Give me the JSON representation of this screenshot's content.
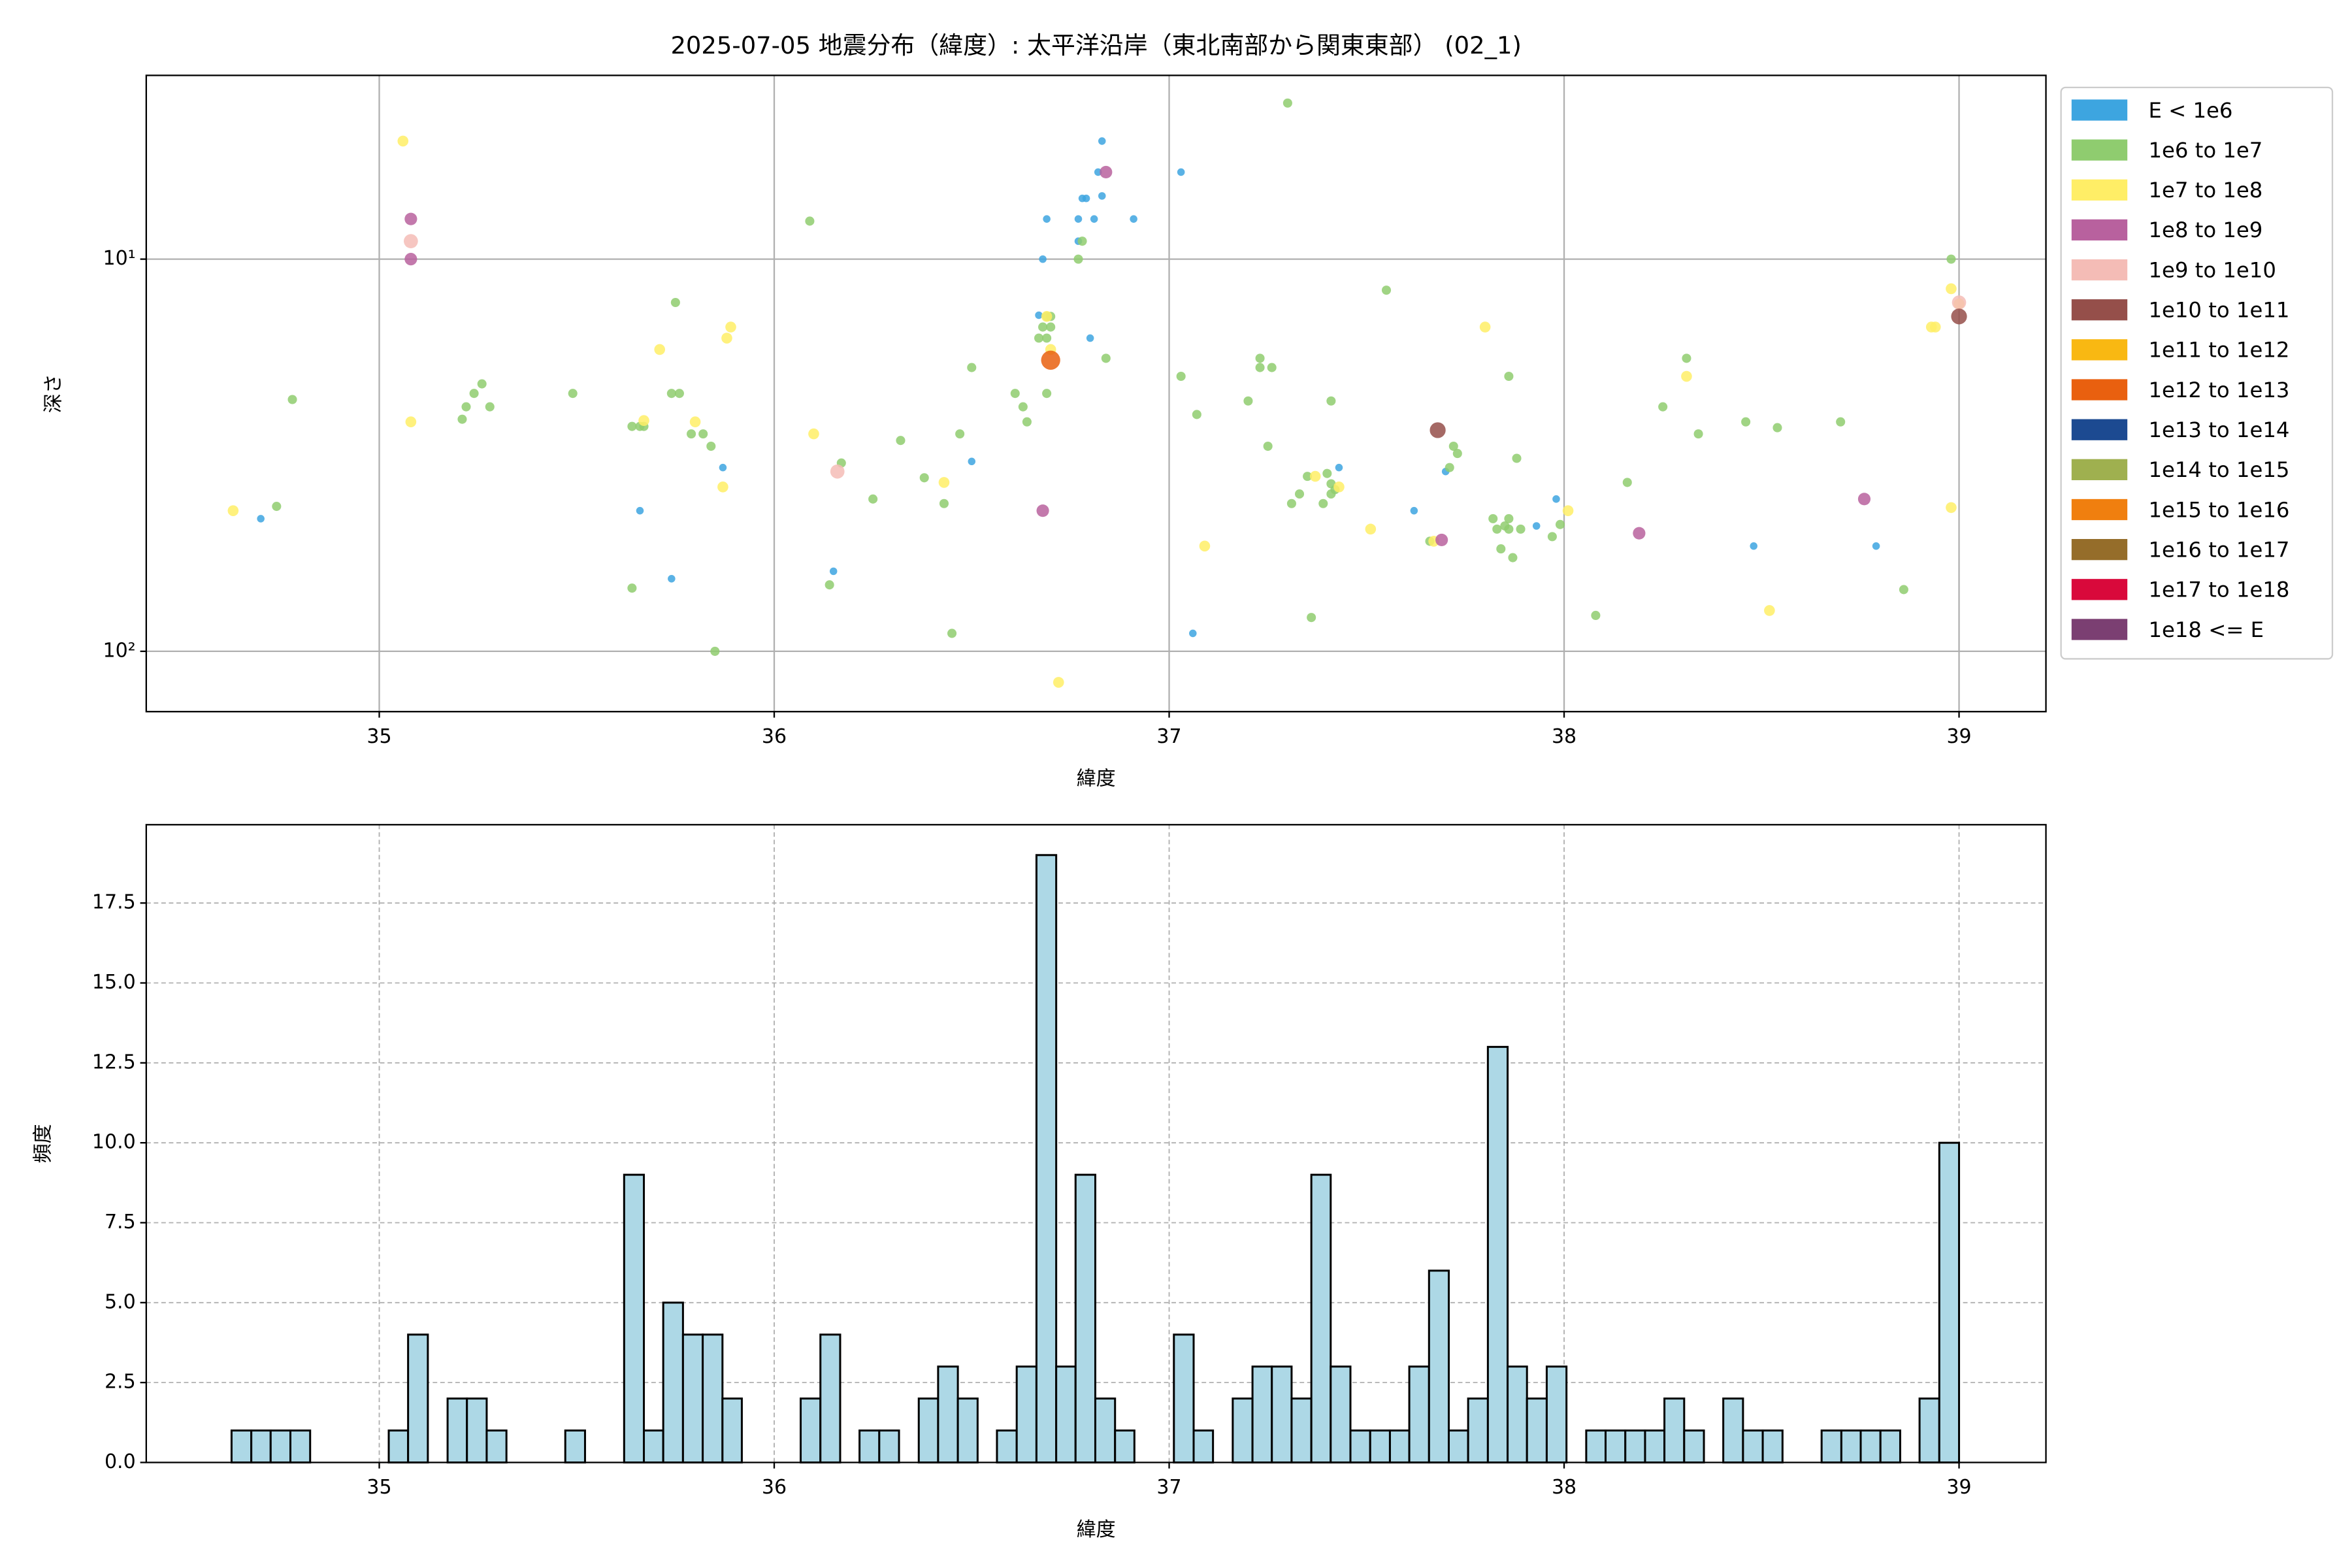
{
  "chart_data": [
    {
      "type": "scatter",
      "title": "2025-07-05 地震分布（緯度）: 太平洋沿岸（東北南部から関東東部） (02_1)",
      "xlabel": "緯度",
      "ylabel": "深さ",
      "xlim": [
        34.41,
        39.22
      ],
      "xticks": [
        35,
        36,
        37,
        38,
        39
      ],
      "ylim": [
        3.4,
        142.5
      ],
      "log_y": true,
      "invert_y": true,
      "yticks": [
        {
          "value": 10,
          "label": "10¹"
        },
        {
          "value": 100,
          "label": "10²"
        }
      ],
      "grid": true,
      "legend": "right",
      "series": [
        {
          "name": "E < 1e6",
          "color": "#3da5e0",
          "x": [
            34.7,
            35.66,
            35.74,
            35.87,
            36.15,
            36.5,
            36.68,
            36.69,
            36.67,
            36.77,
            36.78,
            36.79,
            36.77,
            36.81,
            36.82,
            36.83,
            36.83,
            36.91,
            36.8,
            37.03,
            37.06,
            37.43,
            37.62,
            37.7,
            37.93,
            37.98,
            38.48,
            38.79
          ],
          "y": [
            45.9,
            43.8,
            65.3,
            34.0,
            62.5,
            32.8,
            10.0,
            7.9,
            13.9,
            7.9,
            7.0,
            7.0,
            9.0,
            7.9,
            6.0,
            5.0,
            6.9,
            7.9,
            15.9,
            6.0,
            90,
            34.0,
            43.8,
            34.8,
            47.9,
            40.9,
            53.9,
            53.9
          ]
        },
        {
          "name": "1e6 to 1e7",
          "color": "#8fcc6f",
          "x": [
            34.78,
            34.74,
            35.21,
            35.22,
            35.24,
            35.26,
            35.28,
            35.49,
            35.64,
            35.64,
            35.66,
            35.67,
            35.75,
            35.74,
            35.76,
            35.79,
            35.82,
            35.84,
            35.85,
            36.09,
            36.14,
            36.17,
            36.25,
            36.32,
            36.38,
            36.43,
            36.45,
            36.47,
            36.5,
            36.61,
            36.63,
            36.64,
            36.69,
            36.68,
            36.69,
            36.7,
            36.69,
            36.67,
            36.7,
            36.77,
            36.78,
            36.84,
            37.03,
            37.07,
            37.2,
            37.23,
            37.23,
            37.26,
            37.25,
            37.31,
            37.33,
            37.35,
            37.36,
            37.39,
            37.4,
            37.41,
            37.42,
            37.41,
            37.41,
            37.55,
            37.3,
            37.66,
            37.71,
            37.72,
            37.73,
            37.82,
            37.83,
            37.85,
            37.86,
            37.86,
            37.84,
            37.87,
            37.88,
            37.86,
            37.89,
            37.97,
            37.99,
            38.08,
            38.16,
            38.25,
            38.31,
            38.34,
            38.46,
            38.54,
            38.7,
            38.86,
            38.98
          ],
          "y": [
            22.8,
            42.7,
            25.6,
            23.8,
            22.0,
            20.8,
            23.8,
            22.0,
            69,
            26.7,
            26.7,
            26.7,
            12.9,
            22.0,
            22.0,
            27.9,
            27.9,
            30.0,
            100,
            8.0,
            67.7,
            33.1,
            40.9,
            29.0,
            36.1,
            42.0,
            90,
            27.9,
            18.9,
            22.0,
            23.8,
            26.0,
            22.0,
            14.9,
            15.9,
            14.9,
            14.0,
            15.9,
            14.0,
            10.0,
            9.0,
            17.9,
            19.9,
            24.9,
            23.0,
            17.9,
            18.9,
            18.9,
            30.0,
            42.0,
            39.7,
            35.8,
            82,
            42.0,
            35.2,
            37.4,
            38.7,
            39.7,
            23.0,
            12.0,
            4.0,
            52.4,
            34.0,
            30.0,
            31.3,
            45.9,
            48.8,
            47.9,
            45.9,
            48.8,
            54.8,
            57.7,
            32.2,
            19.9,
            48.8,
            51.0,
            47.5,
            81,
            37.1,
            23.8,
            17.9,
            27.9,
            26.0,
            26.9,
            26.0,
            69.6,
            10.0
          ]
        },
        {
          "name": "1e7 to 1e8",
          "color": "#ffee66",
          "x": [
            34.63,
            35.06,
            35.08,
            35.71,
            35.67,
            35.8,
            35.89,
            35.88,
            35.87,
            36.1,
            36.43,
            36.69,
            36.7,
            36.72,
            37.09,
            37.37,
            37.43,
            37.51,
            37.67,
            37.8,
            38.01,
            38.31,
            38.52,
            38.93,
            38.94,
            38.98,
            38.98,
            39.0
          ],
          "y": [
            43.8,
            5.0,
            26.0,
            17.0,
            25.8,
            26.0,
            14.9,
            15.9,
            38.1,
            27.9,
            37.1,
            14.0,
            17.0,
            120,
            53.9,
            35.8,
            38.1,
            48.8,
            52.4,
            14.9,
            43.8,
            19.9,
            78.7,
            14.9,
            14.9,
            11.9,
            43.0,
            13.0
          ]
        },
        {
          "name": "1e8 to 1e9",
          "color": "#b8619e",
          "x": [
            35.08,
            35.08,
            36.84,
            36.68,
            37.69,
            38.19,
            38.76
          ],
          "y": [
            7.9,
            10.0,
            6.0,
            43.8,
            52.0,
            50.0,
            40.9
          ]
        },
        {
          "name": "1e9 to 1e10",
          "color": "#f4bcb6",
          "x": [
            35.08,
            36.16,
            39.0
          ],
          "y": [
            9.0,
            34.8,
            12.9
          ]
        },
        {
          "name": "1e10 to 1e11",
          "color": "#954f4a",
          "x": [
            37.68,
            39.0
          ],
          "y": [
            27.3,
            14.0
          ]
        },
        {
          "name": "1e11 to 1e12",
          "color": "#f9b812",
          "x": [],
          "y": []
        },
        {
          "name": "1e12 to 1e13",
          "color": "#e9600f",
          "x": [
            36.7
          ],
          "y": [
            18.1
          ]
        },
        {
          "name": "1e13 to 1e14",
          "color": "#1c4a91",
          "x": [],
          "y": []
        },
        {
          "name": "1e14 to 1e15",
          "color": "#9fb04f",
          "x": [],
          "y": []
        },
        {
          "name": "1e15 to 1e16",
          "color": "#f07f0f",
          "x": [],
          "y": []
        },
        {
          "name": "1e16 to 1e17",
          "color": "#956d2a",
          "x": [],
          "y": []
        },
        {
          "name": "1e17 to 1e18",
          "color": "#d9093b",
          "x": [],
          "y": []
        },
        {
          "name": "1e18 <= E",
          "color": "#7b3f72",
          "x": [],
          "y": []
        }
      ]
    },
    {
      "type": "histogram",
      "xlabel": "緯度",
      "ylabel": "頻度",
      "xlim": [
        34.41,
        39.22
      ],
      "xticks": [
        35,
        36,
        37,
        38,
        39
      ],
      "ylim": [
        0,
        19.95
      ],
      "yticks": [
        {
          "value": 0,
          "label": "0.0"
        },
        2.5,
        {
          "value": 5,
          "label": "5.0"
        },
        7.5,
        {
          "value": 10,
          "label": "10.0"
        },
        12.5,
        {
          "value": 15,
          "label": "15.0"
        },
        17.5
      ],
      "grid": true,
      "color": "#add8e6",
      "edgecolor": "#000000",
      "bins": [
        34.626,
        34.676,
        34.725,
        34.775,
        34.825,
        34.875,
        34.924,
        34.974,
        35.024,
        35.073,
        35.123,
        35.173,
        35.222,
        35.272,
        35.322,
        35.372,
        35.421,
        35.471,
        35.521,
        35.57,
        35.62,
        35.67,
        35.719,
        35.769,
        35.819,
        35.869,
        35.918,
        35.968,
        36.018,
        36.067,
        36.117,
        36.167,
        36.216,
        36.266,
        36.316,
        36.366,
        36.415,
        36.465,
        36.515,
        36.564,
        36.614,
        36.664,
        36.714,
        36.763,
        36.813,
        36.863,
        36.912,
        36.962,
        37.012,
        37.062,
        37.111,
        37.161,
        37.211,
        37.26,
        37.31,
        37.36,
        37.409,
        37.459,
        37.509,
        37.559,
        37.608,
        37.658,
        37.708,
        37.757,
        37.807,
        37.857,
        37.906,
        37.956,
        38.006,
        38.056,
        38.105,
        38.155,
        38.205,
        38.254,
        38.304,
        38.354,
        38.403,
        38.453,
        38.503,
        38.553,
        38.602,
        38.652,
        38.702,
        38.751,
        38.801,
        38.851,
        38.9,
        38.95,
        39.0
      ],
      "counts": [
        1,
        1,
        1,
        1,
        0,
        0,
        0,
        0,
        1,
        4,
        0,
        2,
        2,
        1,
        0,
        0,
        0,
        1,
        0,
        0,
        9,
        1,
        5,
        4,
        4,
        2,
        0,
        0,
        0,
        2,
        4,
        0,
        1,
        1,
        0,
        2,
        3,
        2,
        0,
        1,
        3,
        19,
        3,
        9,
        2,
        1,
        0,
        0,
        4,
        1,
        0,
        2,
        3,
        3,
        2,
        9,
        3,
        1,
        1,
        1,
        3,
        6,
        1,
        2,
        13,
        3,
        2,
        3,
        0,
        1,
        1,
        1,
        1,
        2,
        1,
        0,
        2,
        1,
        1,
        0,
        0,
        1,
        1,
        1,
        1,
        0,
        2,
        10
      ]
    }
  ]
}
